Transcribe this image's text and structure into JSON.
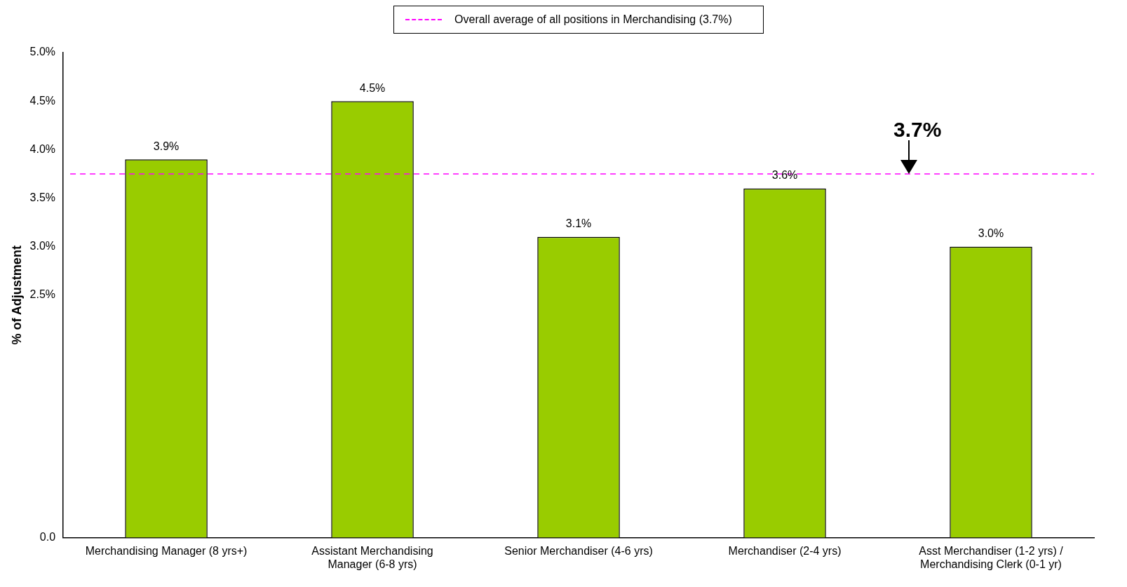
{
  "chart_data": {
    "type": "bar",
    "ylabel": "% of Adjustment",
    "categories": [
      "Merchandising Manager (8 yrs+)",
      "Assistant Merchandising Manager (6-8 yrs)",
      "Senior Merchandiser (4-6 yrs)",
      "Merchandiser (2-4 yrs)",
      "Asst Merchandiser (1-2 yrs) / Merchandising Clerk (0-1 yr)"
    ],
    "values": [
      3.9,
      4.5,
      3.1,
      3.6,
      3.0
    ],
    "value_labels": [
      "3.9%",
      "4.5%",
      "3.1%",
      "3.6%",
      "3.0%"
    ],
    "color": "#99cc00",
    "ylim": [
      0,
      5
    ],
    "yticks": [
      {
        "value": 0,
        "label": "0.0"
      },
      {
        "value": 2.5,
        "label": "2.5%"
      },
      {
        "value": 3.0,
        "label": "3.0%"
      },
      {
        "value": 3.5,
        "label": "3.5%"
      },
      {
        "value": 4.0,
        "label": "4.0%"
      },
      {
        "value": 4.5,
        "label": "4.5%"
      },
      {
        "value": 5.0,
        "label": "5.0%"
      }
    ],
    "ref_lines": [
      {
        "axis": "y",
        "value": 3.75,
        "label": "Overall average of all positions in Merchandising (3.7%)",
        "color": "#ff00ff",
        "line_style": "dashed"
      }
    ],
    "annotations": [
      {
        "text": "3.7%",
        "y": 3.75
      }
    ],
    "legend": "top",
    "grid": false
  }
}
